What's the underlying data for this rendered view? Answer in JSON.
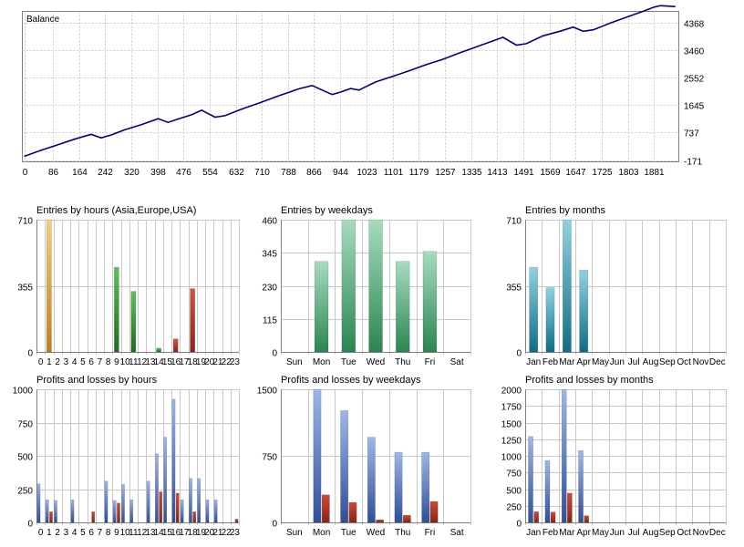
{
  "colors": {
    "balance_line": "#000080",
    "grid": "#c8c8c8",
    "axis": "#808080",
    "hours_asia": "#d08a10",
    "hours_europe": "#2a8a2a",
    "hours_usa": "#a03020",
    "weekday_bars": "#2e9a5e",
    "month_bars": "#14809a",
    "profit": "#3a5faa",
    "loss": "#a03020"
  },
  "chart_data": [
    {
      "id": "balance",
      "type": "line",
      "title": "Balance",
      "xticks": [
        0,
        86,
        164,
        242,
        320,
        398,
        476,
        554,
        632,
        710,
        788,
        866,
        944,
        1023,
        1101,
        1179,
        1257,
        1335,
        1413,
        1491,
        1569,
        1647,
        1725,
        1803,
        1881
      ],
      "yticks": [
        -171,
        737,
        1645,
        2552,
        3460,
        4368
      ],
      "xlim": [
        0,
        1950
      ],
      "ylim": [
        -171,
        4700
      ],
      "x": [
        0,
        50,
        100,
        150,
        200,
        230,
        260,
        300,
        350,
        400,
        430,
        460,
        500,
        530,
        570,
        600,
        650,
        700,
        760,
        820,
        860,
        920,
        944,
        975,
        1000,
        1050,
        1100,
        1150,
        1200,
        1250,
        1300,
        1350,
        1400,
        1430,
        1470,
        1500,
        1550,
        1600,
        1640,
        1670,
        1700,
        1750,
        1800,
        1850,
        1881,
        1900,
        1945
      ],
      "y": [
        -50,
        150,
        330,
        520,
        680,
        560,
        660,
        830,
        1000,
        1200,
        1080,
        1190,
        1330,
        1480,
        1250,
        1300,
        1520,
        1710,
        1960,
        2190,
        2300,
        2000,
        2080,
        2200,
        2150,
        2420,
        2600,
        2790,
        2990,
        3170,
        3380,
        3580,
        3780,
        3900,
        3640,
        3690,
        3950,
        4100,
        4240,
        4100,
        4150,
        4370,
        4570,
        4770,
        4900,
        4950,
        4920
      ]
    },
    {
      "id": "entries-hours",
      "type": "bar",
      "title": "Entries by hours (Asia,Europe,USA)",
      "categories": [
        "0",
        "1",
        "2",
        "3",
        "4",
        "5",
        "6",
        "7",
        "8",
        "9",
        "10",
        "11",
        "12",
        "13",
        "14",
        "15",
        "16",
        "17",
        "18",
        "19",
        "20",
        "21",
        "22",
        "23"
      ],
      "values": [
        0,
        710,
        0,
        0,
        0,
        0,
        0,
        0,
        0,
        455,
        0,
        325,
        0,
        0,
        20,
        0,
        70,
        0,
        340,
        0,
        0,
        0,
        0,
        0
      ],
      "yticks": [
        0,
        355,
        710
      ],
      "ylim": [
        0,
        710
      ]
    },
    {
      "id": "entries-weekdays",
      "type": "bar",
      "title": "Entries by weekdays",
      "categories": [
        "Sun",
        "Mon",
        "Tue",
        "Wed",
        "Thu",
        "Fri",
        "Sat"
      ],
      "values": [
        0,
        315,
        460,
        460,
        315,
        350,
        0
      ],
      "yticks": [
        0,
        115,
        230,
        345,
        460
      ],
      "ylim": [
        0,
        460
      ]
    },
    {
      "id": "entries-months",
      "type": "bar",
      "title": "Entries by months",
      "categories": [
        "Jan",
        "Feb",
        "Mar",
        "Apr",
        "May",
        "Jun",
        "Jul",
        "Aug",
        "Sep",
        "Oct",
        "Nov",
        "Dec"
      ],
      "values": [
        455,
        345,
        710,
        440,
        0,
        0,
        0,
        0,
        0,
        0,
        0,
        0
      ],
      "yticks": [
        0,
        355,
        710
      ],
      "ylim": [
        0,
        710
      ]
    },
    {
      "id": "pl-hours",
      "type": "bar",
      "title": "Profits and losses by hours",
      "categories": [
        "0",
        "1",
        "2",
        "3",
        "4",
        "5",
        "6",
        "7",
        "8",
        "9",
        "10",
        "11",
        "12",
        "13",
        "14",
        "15",
        "16",
        "17",
        "18",
        "19",
        "20",
        "21",
        "22",
        "23"
      ],
      "series": [
        {
          "values": [
            290,
            170,
            165,
            0,
            170,
            0,
            0,
            0,
            310,
            165,
            285,
            170,
            0,
            310,
            515,
            640,
            925,
            170,
            330,
            330,
            170,
            170,
            0,
            0
          ]
        },
        {
          "values": [
            0,
            80,
            0,
            0,
            0,
            0,
            80,
            0,
            0,
            145,
            0,
            0,
            0,
            0,
            230,
            0,
            220,
            0,
            80,
            0,
            0,
            0,
            0,
            25
          ]
        }
      ],
      "yticks": [
        0,
        250,
        500,
        750,
        1000
      ],
      "ylim": [
        0,
        1000
      ]
    },
    {
      "id": "pl-weekdays",
      "type": "bar",
      "title": "Profits and losses by weekdays",
      "categories": [
        "Sun",
        "Mon",
        "Tue",
        "Wed",
        "Thu",
        "Fri",
        "Sat"
      ],
      "series": [
        {
          "values": [
            0,
            1500,
            1260,
            960,
            790,
            790,
            0
          ]
        },
        {
          "values": [
            0,
            310,
            225,
            30,
            80,
            235,
            0
          ]
        }
      ],
      "yticks": [
        0,
        750,
        1500
      ],
      "ylim": [
        0,
        1500
      ]
    },
    {
      "id": "pl-months",
      "type": "bar",
      "title": "Profits and losses by months",
      "categories": [
        "Jan",
        "Feb",
        "Mar",
        "Apr",
        "May",
        "Jun",
        "Jul",
        "Aug",
        "Sep",
        "Oct",
        "Nov",
        "Dec"
      ],
      "series": [
        {
          "values": [
            1290,
            930,
            2000,
            1080,
            0,
            0,
            0,
            0,
            0,
            0,
            0,
            0
          ]
        },
        {
          "values": [
            160,
            155,
            440,
            100,
            0,
            0,
            0,
            0,
            0,
            0,
            0,
            0
          ]
        }
      ],
      "yticks": [
        0,
        250,
        500,
        750,
        1000,
        1250,
        1500,
        1750,
        2000
      ],
      "ylim": [
        0,
        2000
      ]
    }
  ]
}
